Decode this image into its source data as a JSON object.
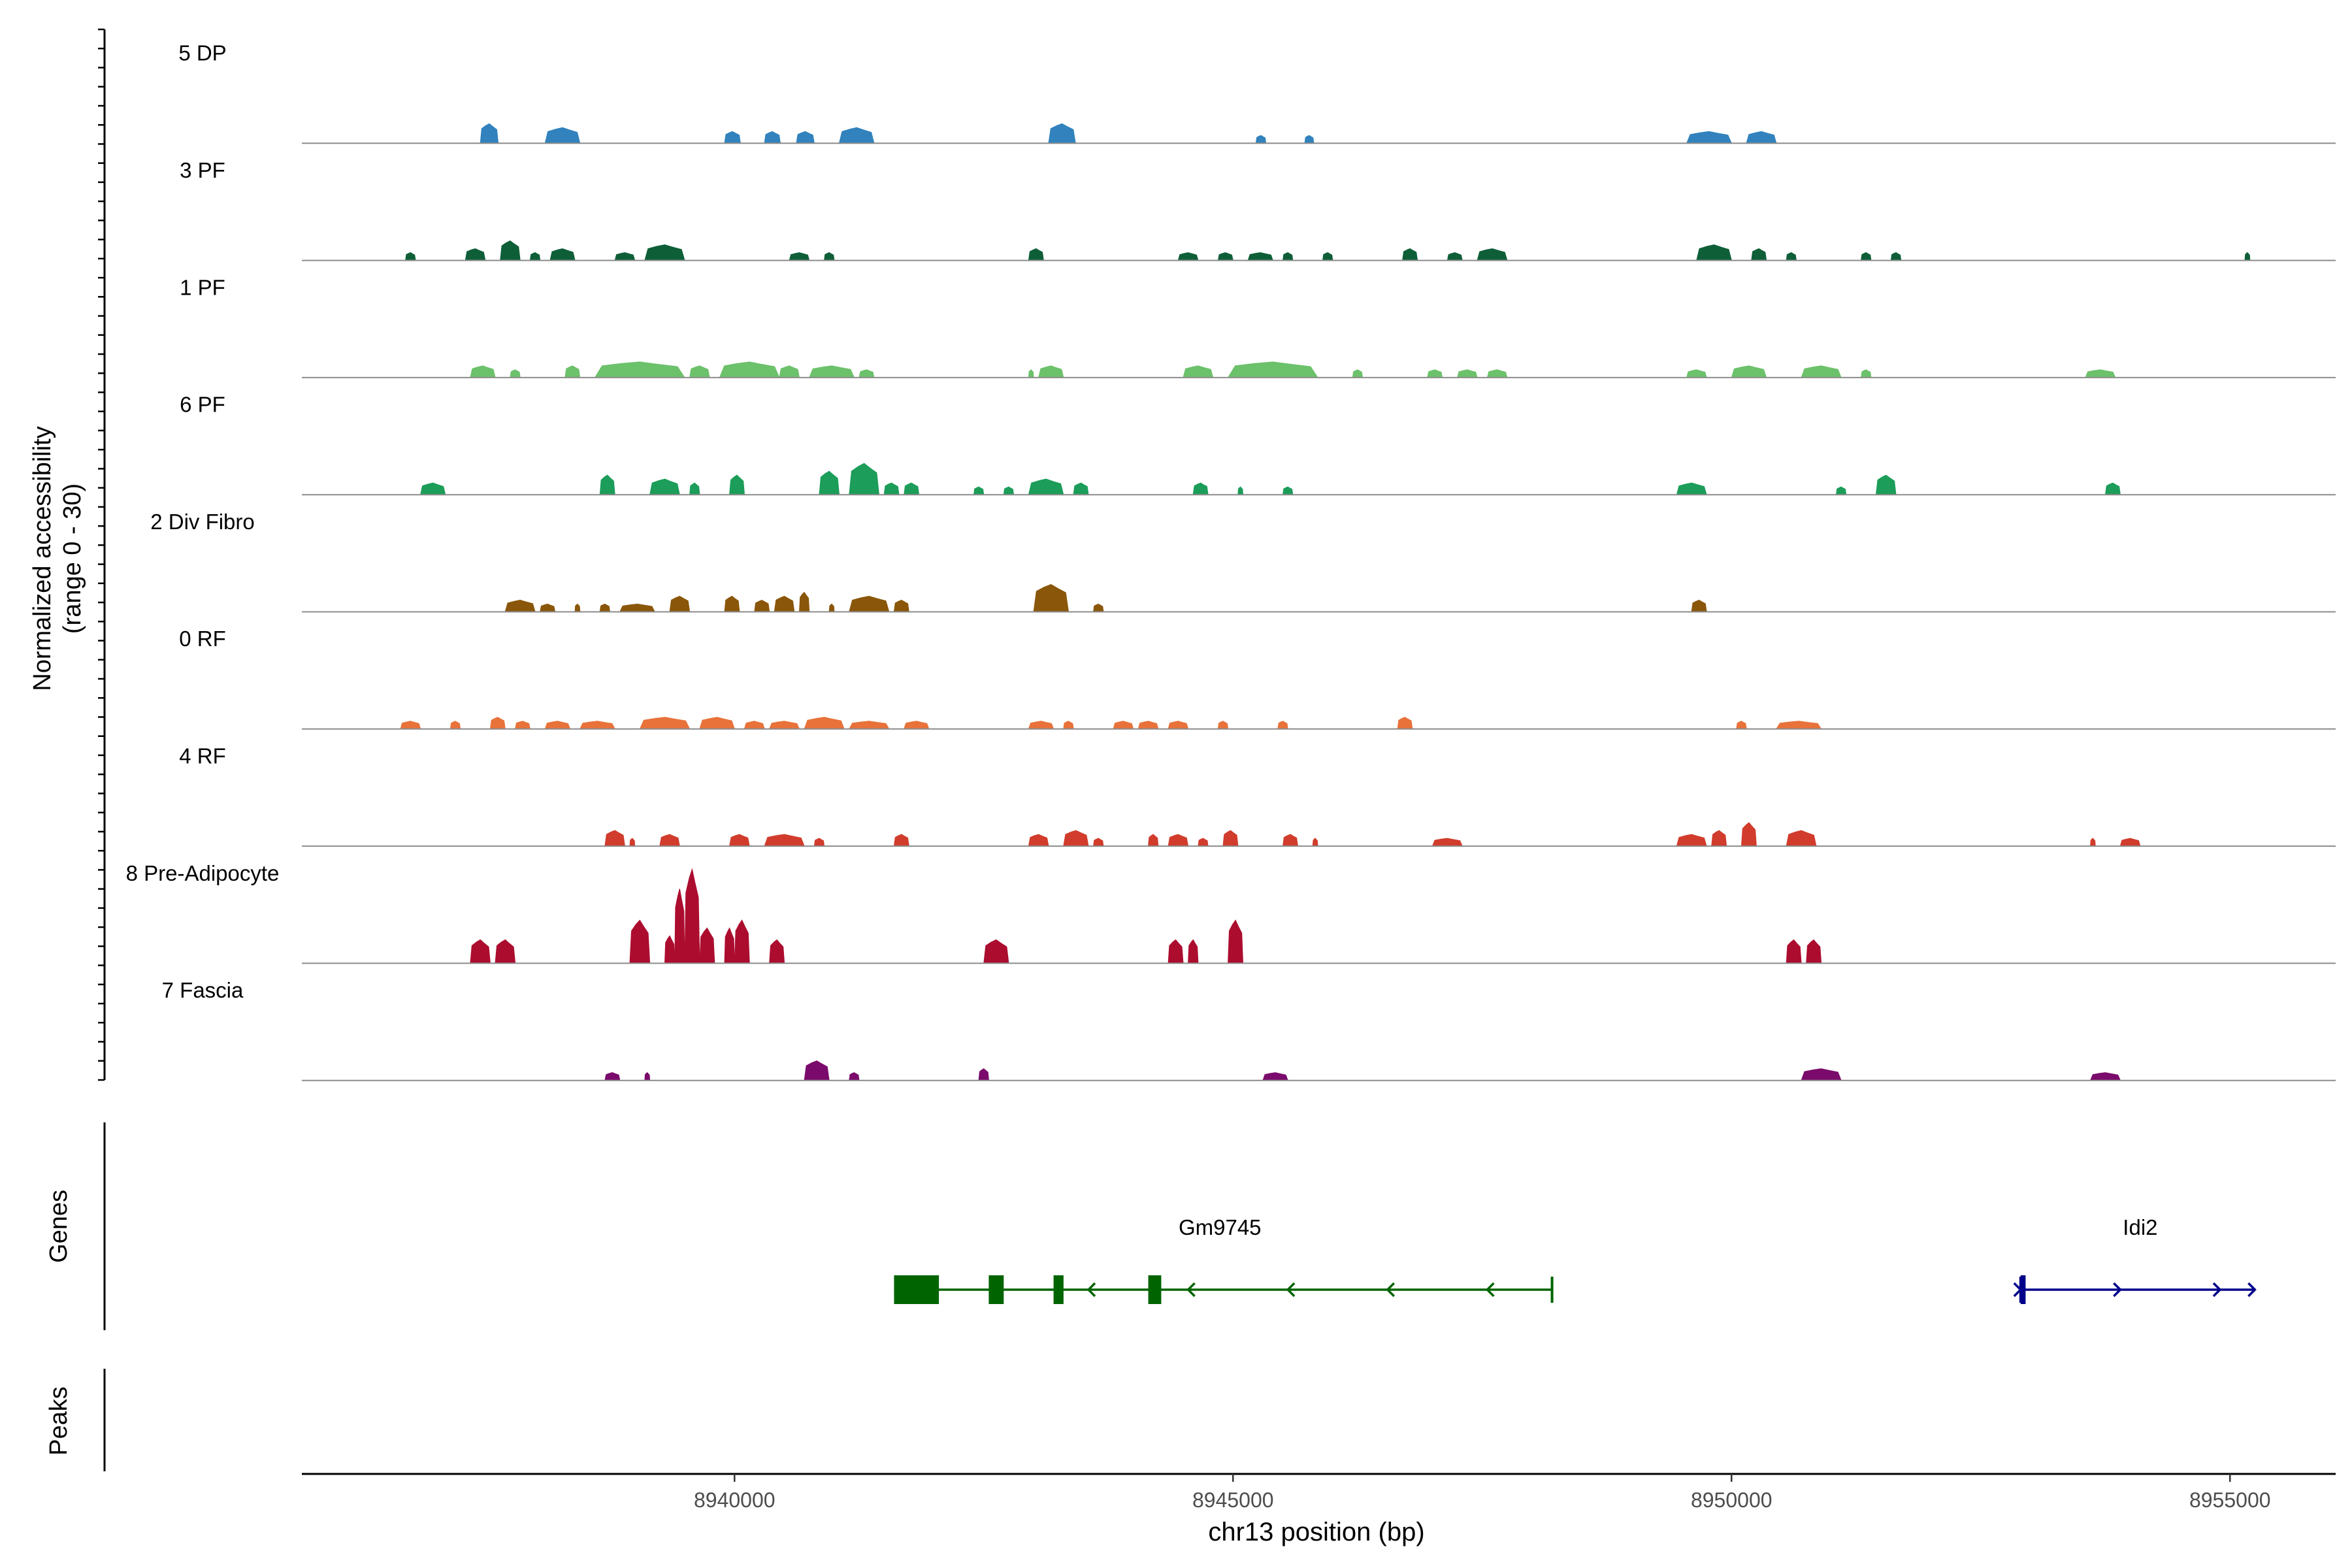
{
  "chart_data": {
    "type": "area",
    "ylabel_lines": [
      "Normalized accessibility",
      "(range 0 - 30)"
    ],
    "xlabel": "chr13 position (bp)",
    "xlim": [
      8935660,
      8956060
    ],
    "x_ticks": [
      8940000,
      8945000,
      8950000,
      8955000
    ],
    "x_tick_labels": [
      "8940000",
      "8945000",
      "8950000",
      "8955000"
    ],
    "genes_label": "Genes",
    "peaks_label": "Peaks",
    "tracks": [
      {
        "name": "5 DP",
        "color": "#3182bd",
        "peaks": [
          [
            8937450,
            8937630,
            5
          ],
          [
            8938100,
            8938450,
            4
          ],
          [
            8939900,
            8940060,
            3
          ],
          [
            8940300,
            8940460,
            3
          ],
          [
            8940620,
            8940800,
            3
          ],
          [
            8941050,
            8941400,
            4
          ],
          [
            8943150,
            8943420,
            5
          ],
          [
            8945230,
            8945330,
            2
          ],
          [
            8945720,
            8945810,
            2
          ],
          [
            8949550,
            8950000,
            3
          ],
          [
            8950150,
            8950450,
            3
          ]
        ]
      },
      {
        "name": "3 PF",
        "color": "#0e5f38",
        "peaks": [
          [
            8936700,
            8936800,
            2
          ],
          [
            8937300,
            8937500,
            3
          ],
          [
            8937650,
            8937850,
            5
          ],
          [
            8937950,
            8938050,
            2
          ],
          [
            8938150,
            8938400,
            3
          ],
          [
            8938800,
            8939000,
            2
          ],
          [
            8939100,
            8939500,
            4
          ],
          [
            8940550,
            8940750,
            2
          ],
          [
            8940900,
            8941000,
            2
          ],
          [
            8942950,
            8943100,
            3
          ],
          [
            8944450,
            8944650,
            2
          ],
          [
            8944850,
            8945000,
            2
          ],
          [
            8945150,
            8945400,
            2
          ],
          [
            8945500,
            8945600,
            2
          ],
          [
            8945900,
            8946000,
            2
          ],
          [
            8946700,
            8946850,
            3
          ],
          [
            8947150,
            8947300,
            2
          ],
          [
            8947450,
            8947750,
            3
          ],
          [
            8949650,
            8950000,
            4
          ],
          [
            8950200,
            8950350,
            3
          ],
          [
            8950550,
            8950650,
            2
          ],
          [
            8951300,
            8951400,
            2
          ],
          [
            8951600,
            8951700,
            2
          ],
          [
            8955150,
            8955200,
            2
          ]
        ]
      },
      {
        "name": "1 PF",
        "color": "#6cc16b",
        "peaks": [
          [
            8937350,
            8937600,
            3
          ],
          [
            8937750,
            8937850,
            2
          ],
          [
            8938300,
            8938450,
            3
          ],
          [
            8938600,
            8939500,
            4
          ],
          [
            8939550,
            8939750,
            3
          ],
          [
            8939850,
            8940450,
            4
          ],
          [
            8940450,
            8940650,
            3
          ],
          [
            8940750,
            8941200,
            3
          ],
          [
            8941250,
            8941400,
            2
          ],
          [
            8942950,
            8943000,
            2
          ],
          [
            8943050,
            8943300,
            3
          ],
          [
            8944500,
            8944800,
            3
          ],
          [
            8944950,
            8945850,
            4
          ],
          [
            8946200,
            8946300,
            2
          ],
          [
            8946950,
            8947100,
            2
          ],
          [
            8947250,
            8947450,
            2
          ],
          [
            8947550,
            8947750,
            2
          ],
          [
            8949550,
            8949750,
            2
          ],
          [
            8950000,
            8950350,
            3
          ],
          [
            8950700,
            8951100,
            3
          ],
          [
            8951300,
            8951400,
            2
          ],
          [
            8953550,
            8953850,
            2
          ]
        ]
      },
      {
        "name": "6 PF",
        "color": "#1c9d59",
        "peaks": [
          [
            8936850,
            8937100,
            3
          ],
          [
            8938650,
            8938800,
            5
          ],
          [
            8939150,
            8939450,
            4
          ],
          [
            8939550,
            8939650,
            3
          ],
          [
            8939950,
            8940100,
            5
          ],
          [
            8940850,
            8941050,
            6
          ],
          [
            8941150,
            8941450,
            8
          ],
          [
            8941500,
            8941650,
            3
          ],
          [
            8941700,
            8941850,
            3
          ],
          [
            8942400,
            8942500,
            2
          ],
          [
            8942700,
            8942800,
            2
          ],
          [
            8942950,
            8943300,
            4
          ],
          [
            8943400,
            8943550,
            3
          ],
          [
            8944600,
            8944750,
            3
          ],
          [
            8945050,
            8945100,
            2
          ],
          [
            8945500,
            8945600,
            2
          ],
          [
            8949450,
            8949750,
            3
          ],
          [
            8951050,
            8951150,
            2
          ],
          [
            8951450,
            8951650,
            5
          ],
          [
            8953750,
            8953900,
            3
          ]
        ]
      },
      {
        "name": "2 Div Fibro",
        "color": "#8a5609",
        "peaks": [
          [
            8937700,
            8938000,
            3
          ],
          [
            8938050,
            8938200,
            2
          ],
          [
            8938400,
            8938450,
            2
          ],
          [
            8938650,
            8938750,
            2
          ],
          [
            8938850,
            8939200,
            2
          ],
          [
            8939350,
            8939550,
            4
          ],
          [
            8939900,
            8940050,
            4
          ],
          [
            8940200,
            8940350,
            3
          ],
          [
            8940400,
            8940600,
            4
          ],
          [
            8940650,
            8940750,
            5
          ],
          [
            8940950,
            8941000,
            2
          ],
          [
            8941150,
            8941550,
            4
          ],
          [
            8941600,
            8941750,
            3
          ],
          [
            8943000,
            8943350,
            7
          ],
          [
            8943600,
            8943700,
            2
          ],
          [
            8949600,
            8949750,
            3
          ]
        ]
      },
      {
        "name": "0 RF",
        "color": "#e8723a",
        "peaks": [
          [
            8936650,
            8936850,
            2
          ],
          [
            8937150,
            8937250,
            2
          ],
          [
            8937550,
            8937700,
            3
          ],
          [
            8937800,
            8937950,
            2
          ],
          [
            8938100,
            8938350,
            2
          ],
          [
            8938450,
            8938800,
            2
          ],
          [
            8939050,
            8939550,
            3
          ],
          [
            8939650,
            8940000,
            3
          ],
          [
            8940100,
            8940300,
            2
          ],
          [
            8940350,
            8940650,
            2
          ],
          [
            8940700,
            8941100,
            3
          ],
          [
            8941150,
            8941550,
            2
          ],
          [
            8941700,
            8941950,
            2
          ],
          [
            8942950,
            8943200,
            2
          ],
          [
            8943300,
            8943400,
            2
          ],
          [
            8943800,
            8944000,
            2
          ],
          [
            8944050,
            8944250,
            2
          ],
          [
            8944350,
            8944550,
            2
          ],
          [
            8944850,
            8944950,
            2
          ],
          [
            8945450,
            8945550,
            2
          ],
          [
            8946650,
            8946800,
            3
          ],
          [
            8950050,
            8950150,
            2
          ],
          [
            8950450,
            8950900,
            2
          ]
        ]
      },
      {
        "name": "4 RF",
        "color": "#d13c2c",
        "peaks": [
          [
            8938700,
            8938900,
            4
          ],
          [
            8938950,
            8939000,
            2
          ],
          [
            8939250,
            8939450,
            3
          ],
          [
            8939950,
            8940150,
            3
          ],
          [
            8940300,
            8940700,
            3
          ],
          [
            8940800,
            8940900,
            2
          ],
          [
            8941600,
            8941750,
            3
          ],
          [
            8942950,
            8943150,
            3
          ],
          [
            8943300,
            8943550,
            4
          ],
          [
            8943600,
            8943700,
            2
          ],
          [
            8944150,
            8944250,
            3
          ],
          [
            8944350,
            8944550,
            3
          ],
          [
            8944650,
            8944750,
            2
          ],
          [
            8944900,
            8945050,
            4
          ],
          [
            8945500,
            8945650,
            3
          ],
          [
            8945800,
            8945850,
            2
          ],
          [
            8947000,
            8947300,
            2
          ],
          [
            8949450,
            8949750,
            3
          ],
          [
            8949800,
            8949950,
            4
          ],
          [
            8950100,
            8950250,
            6
          ],
          [
            8950550,
            8950850,
            4
          ],
          [
            8953600,
            8953650,
            2
          ],
          [
            8953900,
            8954100,
            2
          ]
        ]
      },
      {
        "name": "8 Pre-Adipocyte",
        "color": "#ac0d2f",
        "peaks": [
          [
            8937350,
            8937550,
            6
          ],
          [
            8937600,
            8937800,
            6
          ],
          [
            8938950,
            8939150,
            11
          ],
          [
            8939300,
            8939400,
            7
          ],
          [
            8939400,
            8939500,
            19
          ],
          [
            8939500,
            8939650,
            24
          ],
          [
            8939650,
            8939800,
            9
          ],
          [
            8939900,
            8940000,
            9
          ],
          [
            8940000,
            8940150,
            11
          ],
          [
            8940350,
            8940500,
            6
          ],
          [
            8942500,
            8942750,
            6
          ],
          [
            8944350,
            8944500,
            6
          ],
          [
            8944550,
            8944650,
            6
          ],
          [
            8944950,
            8945100,
            11
          ],
          [
            8950550,
            8950700,
            6
          ],
          [
            8950750,
            8950900,
            6
          ]
        ]
      },
      {
        "name": "7 Fascia",
        "color": "#7a0a6b",
        "peaks": [
          [
            8938700,
            8938850,
            2
          ],
          [
            8939100,
            8939150,
            2
          ],
          [
            8940700,
            8940950,
            5
          ],
          [
            8941150,
            8941250,
            2
          ],
          [
            8942450,
            8942550,
            3
          ],
          [
            8945300,
            8945550,
            2
          ],
          [
            8950700,
            8951100,
            3
          ],
          [
            8953600,
            8953900,
            2
          ]
        ]
      }
    ],
    "genes": [
      {
        "name": "Gm9745",
        "color": "#006400",
        "start": 8941600,
        "end": 8948200,
        "strand": "-",
        "exons": [
          [
            8941600,
            8942050
          ],
          [
            8942550,
            8942700
          ],
          [
            8943200,
            8943300
          ],
          [
            8944150,
            8944280
          ]
        ],
        "arrows": [
          8943550,
          8944550,
          8945550,
          8946550,
          8947550
        ]
      },
      {
        "name": "Idi2",
        "color": "#00008b",
        "start": 8952900,
        "end": 8955250,
        "strand": "+",
        "exons": [
          [
            8952900,
            8952950
          ]
        ],
        "arrows": [
          8952900,
          8953900,
          8954900,
          8955250
        ]
      }
    ]
  }
}
